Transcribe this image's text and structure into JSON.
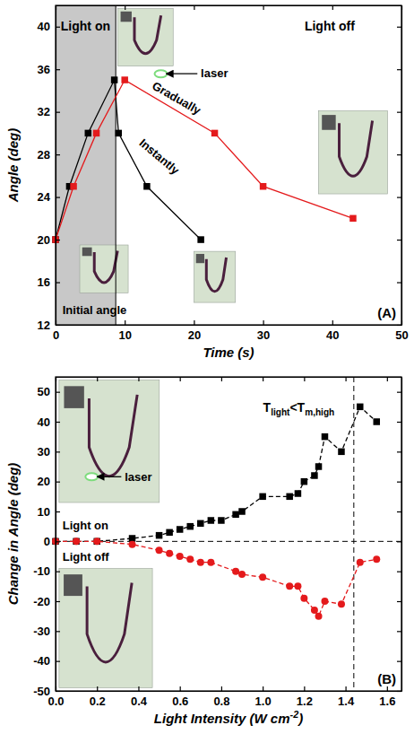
{
  "chart_data": [
    {
      "type": "line",
      "panel_label": "(A)",
      "x_label": [
        "Time (s)"
      ],
      "y_label": [
        "Angle (deg)"
      ],
      "xlim": [
        0,
        50
      ],
      "ylim": [
        12,
        42
      ],
      "xticks": [
        0,
        10,
        20,
        30,
        40,
        50
      ],
      "yticks": [
        12,
        16,
        20,
        24,
        28,
        32,
        36,
        40
      ],
      "shaded_x": [
        0,
        8.7
      ],
      "annotations": [
        "Light on",
        "Light off",
        "laser",
        "Gradually",
        "Instantly",
        "Initial angle"
      ],
      "series": [
        {
          "color": "#000000",
          "marker": "square",
          "line_style": "solid",
          "x": [
            0,
            2,
            4.7,
            8.5,
            9.1,
            13.2,
            21
          ],
          "values": [
            20,
            25,
            30,
            35,
            30,
            25,
            20
          ]
        },
        {
          "color": "#e41a1c",
          "marker": "square",
          "line_style": "solid",
          "x": [
            0,
            2.6,
            5.9,
            10,
            23,
            30,
            43
          ],
          "values": [
            20,
            25,
            30,
            35,
            30,
            25,
            22
          ]
        }
      ]
    },
    {
      "type": "line",
      "panel_label": "(B)",
      "x_label": [
        "Light Intensity (W cm",
        "-2",
        ")"
      ],
      "y_label": [
        "Change in Angle (deg)"
      ],
      "xlim": [
        0,
        1.67
      ],
      "ylim": [
        -50,
        55
      ],
      "xticks": [
        {
          "value": 0,
          "label": "0.0"
        },
        0.2,
        0.4,
        0.6,
        0.8,
        {
          "value": 1,
          "label": "1.0"
        },
        1.2,
        1.4,
        1.6
      ],
      "yticks": [
        -50,
        -40,
        -30,
        -20,
        -10,
        0,
        10,
        20,
        30,
        40,
        50
      ],
      "hline_y": 0,
      "vline_x": 1.44,
      "threshold_label": [
        "T",
        "light",
        "<T",
        "m,high"
      ],
      "annotations": [
        "Light on",
        "Light off",
        "laser"
      ],
      "series": [
        {
          "color": "#000000",
          "marker": "square",
          "line_style": "dashed",
          "x": [
            0,
            0.1,
            0.2,
            0.37,
            0.5,
            0.55,
            0.6,
            0.65,
            0.7,
            0.75,
            0.8,
            0.87,
            0.9,
            1.0,
            1.13,
            1.17,
            1.2,
            1.25,
            1.27,
            1.3,
            1.38,
            1.47,
            1.55
          ],
          "values": [
            0,
            0,
            0,
            1,
            2,
            3,
            4,
            5,
            6,
            7,
            7,
            9,
            10,
            15,
            15,
            16,
            20,
            22,
            25,
            35,
            30,
            45,
            40
          ]
        },
        {
          "color": "#e41a1c",
          "marker": "circle",
          "line_style": "dashed",
          "x": [
            0,
            0.1,
            0.2,
            0.37,
            0.5,
            0.55,
            0.6,
            0.65,
            0.7,
            0.75,
            0.87,
            0.9,
            1.0,
            1.13,
            1.17,
            1.2,
            1.25,
            1.27,
            1.3,
            1.38,
            1.47,
            1.55
          ],
          "values": [
            0,
            0,
            0,
            -1,
            -3,
            -4,
            -5,
            -6,
            -7,
            -7,
            -10,
            -11,
            -12,
            -15,
            -15,
            -19,
            -23,
            -25,
            -20,
            -21,
            -7,
            -6
          ]
        }
      ]
    }
  ]
}
